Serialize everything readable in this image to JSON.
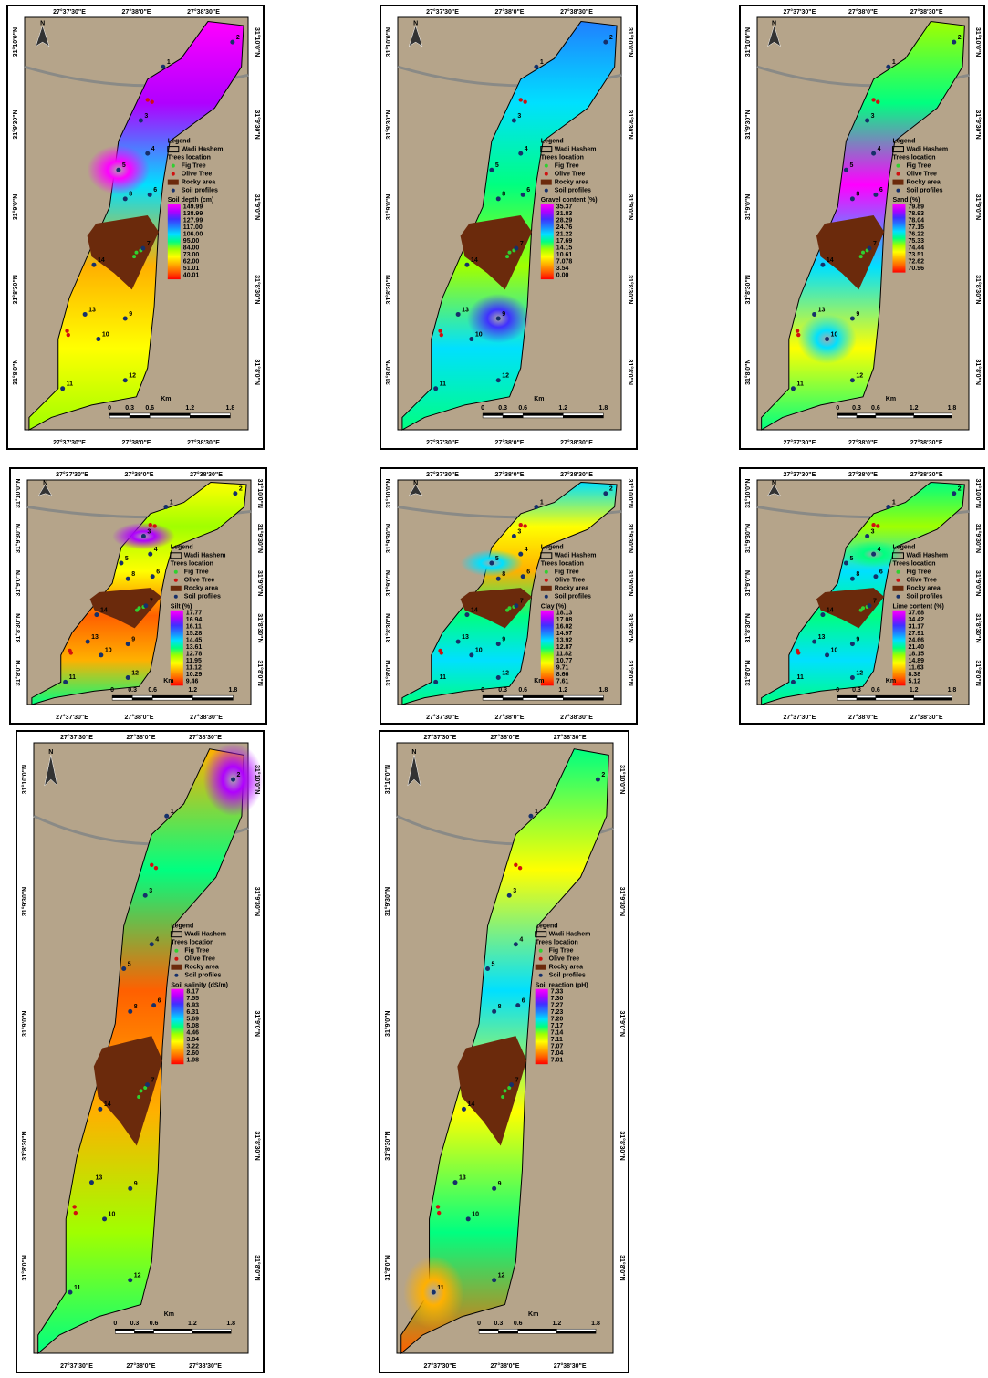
{
  "common": {
    "x_labels": [
      "27°37'30\"E",
      "27°38'0\"E",
      "27°38'30\"E"
    ],
    "y_labels": [
      "31°10'0\"N",
      "31°9'30\"N",
      "31°9'0\"N",
      "31°8'30\"N",
      "31°8'0\"N"
    ],
    "north": "N",
    "legend": {
      "title": "Legend",
      "boundary": "Wadi Hashem",
      "trees": "Trees location",
      "fig": "Fig Tree",
      "olive": "Olive Tree",
      "rocky": "Rocky area",
      "profiles": "Soil profiles"
    },
    "scale": {
      "unit": "Km",
      "ticks": [
        "0",
        "0.3",
        "0.6",
        "1.2",
        "1.8"
      ]
    },
    "profiles": [
      "1",
      "2",
      "3",
      "4",
      "5",
      "6",
      "7",
      "8",
      "9",
      "10",
      "11",
      "12",
      "13",
      "14"
    ]
  },
  "maps": [
    {
      "title": "Soil depth (cm)",
      "classes": [
        "149.99",
        "138.99",
        "127.99",
        "117.00",
        "106.00",
        "95.00",
        "84.00",
        "73.00",
        "62.00",
        "51.01",
        "40.01"
      ]
    },
    {
      "title": "Gravel content (%)",
      "classes": [
        "35.37",
        "31.83",
        "28.29",
        "24.76",
        "21.22",
        "17.69",
        "14.15",
        "10.61",
        "7.078",
        "3.54",
        "0.00"
      ]
    },
    {
      "title": "Sand (%)",
      "classes": [
        "79.89",
        "78.93",
        "78.04",
        "77.15",
        "76.22",
        "75.33",
        "74.44",
        "73.51",
        "72.62",
        "70.96"
      ]
    },
    {
      "title": "Silt (%)",
      "classes": [
        "17.77",
        "16.94",
        "16.11",
        "15.28",
        "14.45",
        "13.61",
        "12.78",
        "11.95",
        "11.12",
        "10.29",
        "9.46"
      ]
    },
    {
      "title": "Clay (%)",
      "classes": [
        "18.13",
        "17.08",
        "16.02",
        "14.97",
        "13.92",
        "12.87",
        "11.82",
        "10.77",
        "9.71",
        "8.66",
        "7.61"
      ]
    },
    {
      "title": "Lime content (%)",
      "classes": [
        "37.68",
        "34.42",
        "31.17",
        "27.91",
        "24.66",
        "21.40",
        "18.15",
        "14.89",
        "11.63",
        "8.38",
        "5.12"
      ]
    },
    {
      "title": "Soil salinity (dS/m)",
      "classes": [
        "8.17",
        "7.55",
        "6.93",
        "6.31",
        "5.69",
        "5.08",
        "4.46",
        "3.84",
        "3.22",
        "2.60",
        "1.98"
      ]
    },
    {
      "title": "Soil reaction (pH)",
      "classes": [
        "7.33",
        "7.30",
        "7.27",
        "7.23",
        "7.20",
        "7.17",
        "7.14",
        "7.11",
        "7.07",
        "7.04",
        "7.01"
      ]
    }
  ]
}
